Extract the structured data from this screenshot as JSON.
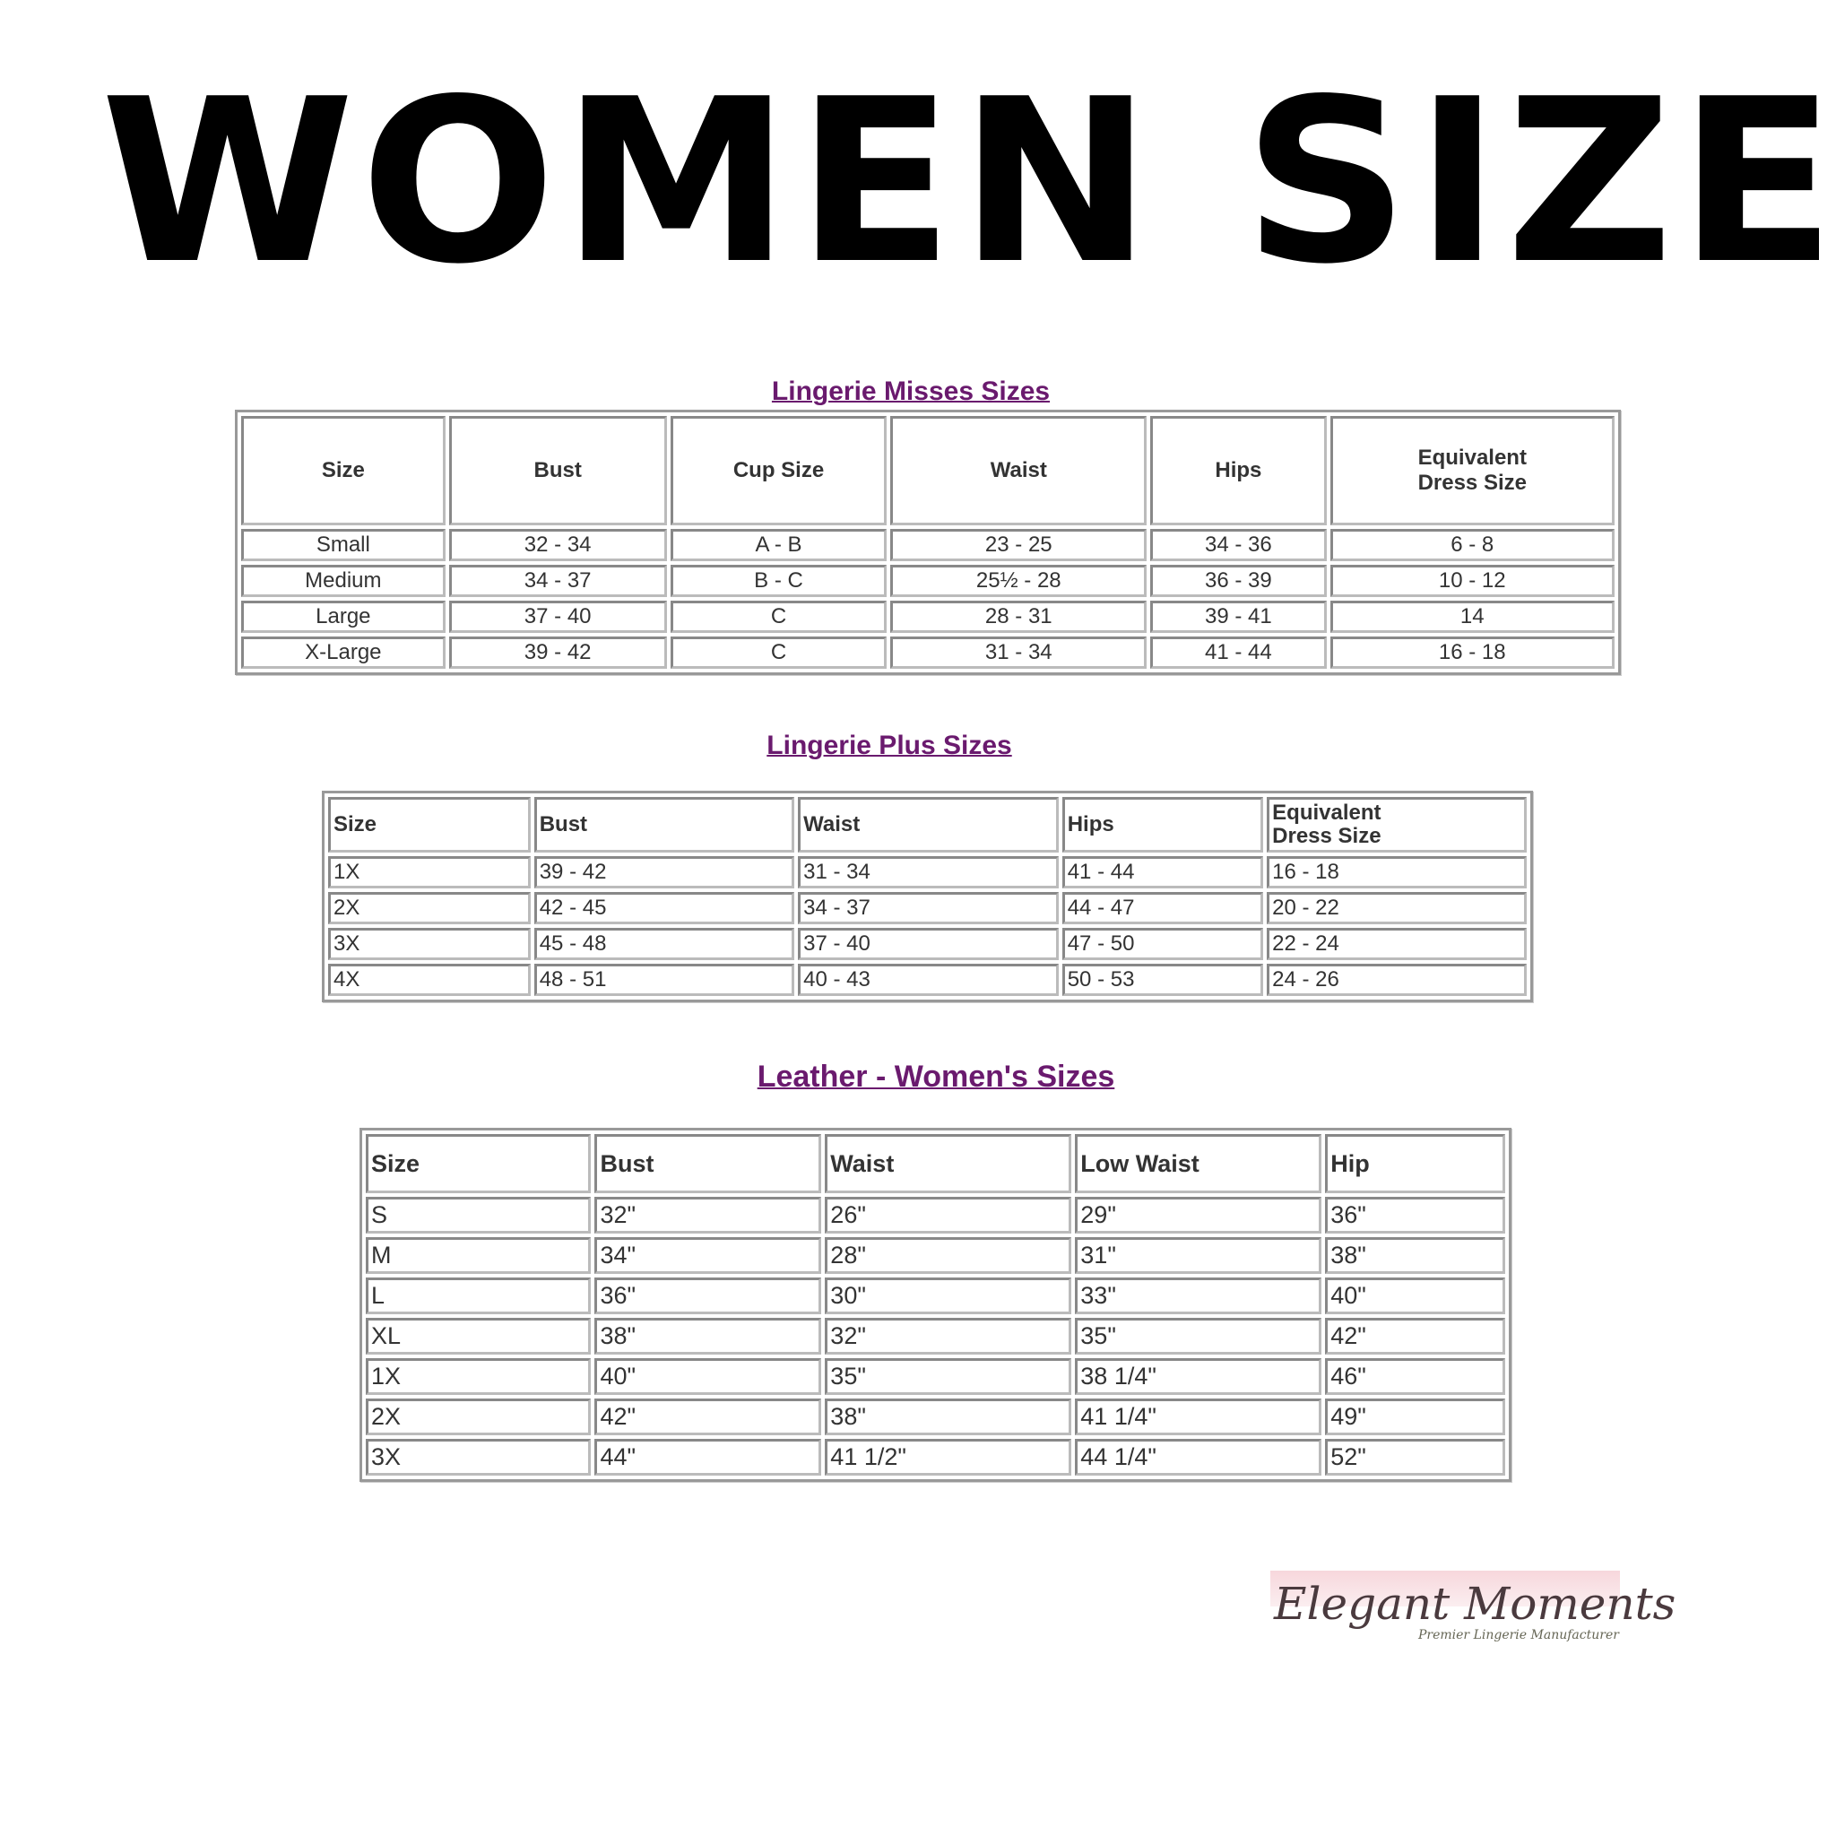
{
  "title": "WOMEN SIZE",
  "tables": [
    {
      "title": "Lingerie Misses Sizes",
      "headers": [
        "Size",
        "Bust",
        "Cup Size",
        "Waist",
        "Hips",
        "Equivalent Dress Size"
      ],
      "rows": [
        [
          "Small",
          "32 - 34",
          "A - B",
          "23 - 25",
          "34 - 36",
          "6 - 8"
        ],
        [
          "Medium",
          "34 - 37",
          "B - C",
          "25½ - 28",
          "36 - 39",
          "10 - 12"
        ],
        [
          "Large",
          "37 - 40",
          "C",
          "28 - 31",
          "39 - 41",
          "14"
        ],
        [
          "X-Large",
          "39 - 42",
          "C",
          "31 - 34",
          "41 - 44",
          "16 - 18"
        ]
      ]
    },
    {
      "title": "Lingerie Plus Sizes",
      "headers": [
        "Size",
        "Bust",
        "Waist",
        "Hips",
        "Equivalent Dress Size"
      ],
      "rows": [
        [
          "1X",
          "39 - 42",
          "31 - 34",
          "41 - 44",
          "16 - 18"
        ],
        [
          "2X",
          "42 - 45",
          "34 - 37",
          "44 - 47",
          "20 - 22"
        ],
        [
          "3X",
          "45 - 48",
          "37 - 40",
          "47 - 50",
          "22 - 24"
        ],
        [
          "4X",
          "48 - 51",
          "40 - 43",
          "50 - 53",
          "24 - 26"
        ]
      ]
    },
    {
      "title": "Leather - Women's Sizes",
      "headers": [
        "Size",
        "Bust",
        "Waist",
        "Low Waist",
        "Hip"
      ],
      "rows": [
        [
          "S",
          "32\"",
          "26\"",
          "29\"",
          "36\""
        ],
        [
          "M",
          "34\"",
          "28\"",
          "31\"",
          "38\""
        ],
        [
          "L",
          "36\"",
          "30\"",
          "33\"",
          "40\""
        ],
        [
          "XL",
          "38\"",
          "32\"",
          "35\"",
          "42\""
        ],
        [
          "1X",
          "40\"",
          "35\"",
          "38 1/4\"",
          "46\""
        ],
        [
          "2X",
          "42\"",
          "38\"",
          "41 1/4\"",
          "49\""
        ],
        [
          "3X",
          "44\"",
          "41 1/2\"",
          "44 1/4\"",
          "52\""
        ]
      ]
    }
  ],
  "logo": {
    "name": "Elegant Moments",
    "tagline": "Premier Lingerie Manufacturer"
  },
  "colors": {
    "section_title": "#6a1a6e",
    "logo_band": "#f7d7dc"
  }
}
